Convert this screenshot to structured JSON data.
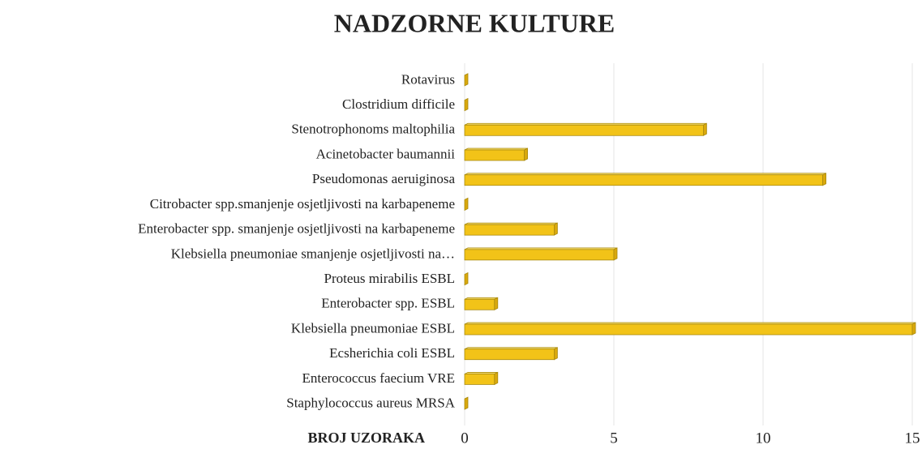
{
  "chart_data": {
    "type": "barh",
    "title": "NADZORNE KULTURE",
    "x_label": "BROJ UZORAKA",
    "categories": [
      "Rotavirus",
      "Clostridium difficile",
      "Stenotrophonoms maltophilia",
      "Acinetobacter baumannii",
      "Pseudomonas aeruiginosa",
      "Citrobacter spp.smanjenje osjetljivosti na karbapeneme",
      "Enterobacter spp. smanjenje osjetljivosti na karbapeneme",
      "Klebsiella pneumoniae smanjenje osjetljivosti na…",
      "Proteus mirabilis ESBL",
      "Enterobacter spp. ESBL",
      "Klebsiella pneumoniae ESBL",
      "Ecsherichia coli ESBL",
      "Enterococcus faecium VRE",
      "Staphylococcus aureus MRSA"
    ],
    "values": [
      0,
      0,
      8,
      2,
      12,
      0,
      3,
      5,
      0,
      1,
      15,
      3,
      1,
      0
    ],
    "color": "#f2c318",
    "xlim": [
      0,
      15
    ],
    "xticks": [
      0,
      5,
      10,
      15
    ],
    "grid": true
  }
}
